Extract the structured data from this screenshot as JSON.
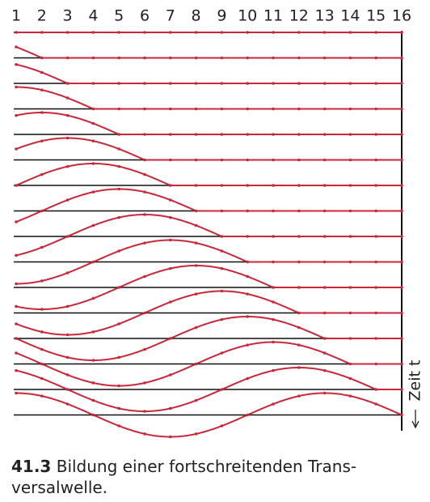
{
  "columns": [
    "1",
    "2",
    "3",
    "4",
    "5",
    "6",
    "7",
    "8",
    "9",
    "10",
    "11",
    "12",
    "13",
    "14",
    "15",
    "16"
  ],
  "time_label": "Zeit t",
  "caption": {
    "number": "41.3",
    "lines": [
      "Bildung einer fortschreitenden Trans-",
      "versalwelle."
    ]
  }
}
